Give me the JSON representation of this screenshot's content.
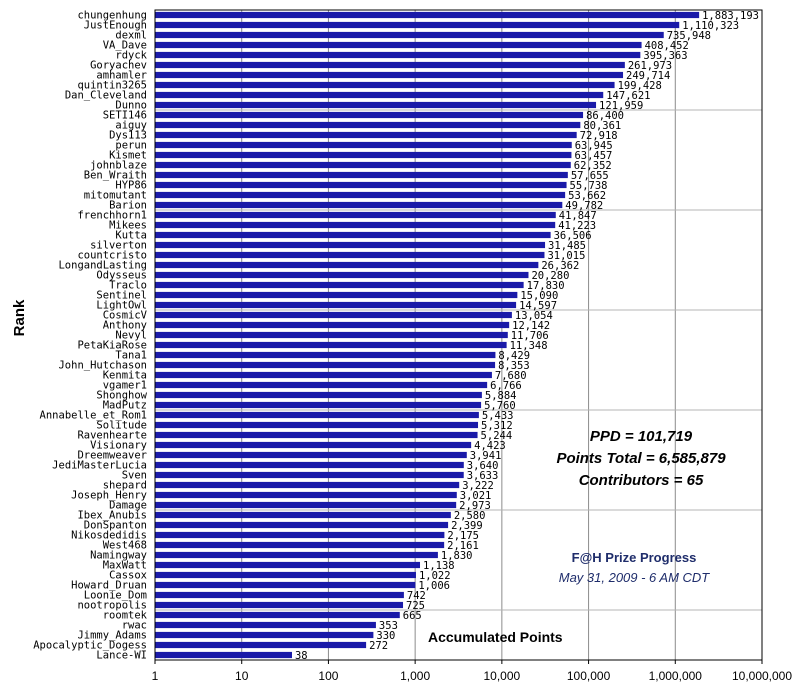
{
  "chart_data": {
    "type": "bar",
    "orientation": "horizontal",
    "ylabel": "Rank",
    "xlabel": "Accumulated Points",
    "x_scale": "log",
    "xlim": [
      1,
      10000000
    ],
    "x_ticks": [
      "1",
      "10",
      "100",
      "1,000",
      "10,000",
      "100,000",
      "1,000,000",
      "10,000,000"
    ],
    "grid": "vertical",
    "bar_color": "#1a1aa8",
    "categories": [
      "chungenhung",
      "JustEnough",
      "dexml",
      "VA_Dave",
      "rdyck",
      "Goryachev",
      "amhamler",
      "quintin3265",
      "Dan_Cleveland",
      "Dunno",
      "SETI146",
      "aiguy",
      "Dys113",
      "perun",
      "Kismet",
      "johnblaze",
      "Ben_Wraith",
      "HYP86",
      "mitomutant",
      "Barion",
      "frenchhorn1",
      "Mikees",
      "Kutta",
      "silverton",
      "countcristo",
      "LongandLasting",
      "Odysseus",
      "Traclo",
      "Sentinel",
      "LightOwl",
      "CosmicV",
      "Anthony",
      "Nevyl",
      "PetaKiaRose",
      "Tana1",
      "John_Hutchason",
      "Kenmita",
      "vgamer1",
      "Shonghow",
      "MadPutz",
      "Annabelle_et_Rom1",
      "Solitude",
      "Ravenhearte",
      "Visionary",
      "Dreemweaver",
      "JediMasterLucia",
      "Sven",
      "shepard",
      "Joseph_Henry",
      "Damage",
      "Ibex_Anubis",
      "DonSpanton",
      "Nikosdedidis",
      "West468",
      "Namingway",
      "MaxWatt",
      "Cassox",
      "Howard_Druan",
      "Loonie_Dom",
      "nootropolis",
      "roomtek",
      "rwac",
      "Jimmy_Adams",
      "Apocalyptic_Dogess",
      "Lance-WI"
    ],
    "values": [
      1883193,
      1110323,
      735948,
      408452,
      395363,
      261973,
      249714,
      199428,
      147621,
      121959,
      86400,
      80361,
      72918,
      63945,
      63457,
      62352,
      57655,
      55738,
      53662,
      49782,
      41847,
      41223,
      36506,
      31485,
      31015,
      26362,
      20280,
      17830,
      15090,
      14597,
      13054,
      12142,
      11706,
      11348,
      8429,
      8353,
      7680,
      6766,
      5884,
      5760,
      5433,
      5312,
      5244,
      4423,
      3941,
      3640,
      3633,
      3222,
      3021,
      2973,
      2580,
      2399,
      2175,
      2161,
      1830,
      1138,
      1022,
      1006,
      742,
      725,
      665,
      353,
      330,
      272,
      38
    ],
    "value_labels": [
      "1,883,193",
      "1,110,323",
      "735,948",
      "408,452",
      "395,363",
      "261,973",
      "249,714",
      "199,428",
      "147,621",
      "121,959",
      "86,400",
      "80,361",
      "72,918",
      "63,945",
      "63,457",
      "62,352",
      "57,655",
      "55,738",
      "53,662",
      "49,782",
      "41,847",
      "41,223",
      "36,506",
      "31,485",
      "31,015",
      "26,362",
      "20,280",
      "17,830",
      "15,090",
      "14,597",
      "13,054",
      "12,142",
      "11,706",
      "11,348",
      "8,429",
      "8,353",
      "7,680",
      "6,766",
      "5,884",
      "5,760",
      "5,433",
      "5,312",
      "5,244",
      "4,423",
      "3,941",
      "3,640",
      "3,633",
      "3,222",
      "3,021",
      "2,973",
      "2,580",
      "2,399",
      "2,175",
      "2,161",
      "1,830",
      "1,138",
      "1,022",
      "1,006",
      "742",
      "725",
      "665",
      "353",
      "330",
      "272",
      "38"
    ]
  },
  "stats": {
    "ppd": "PPD = 101,719",
    "points_total": "Points Total = 6,585,879",
    "contributors": "Contributors = 65"
  },
  "caption": {
    "title": "F@H Prize Progress",
    "date": "May 31, 2009 - 6 AM CDT"
  }
}
